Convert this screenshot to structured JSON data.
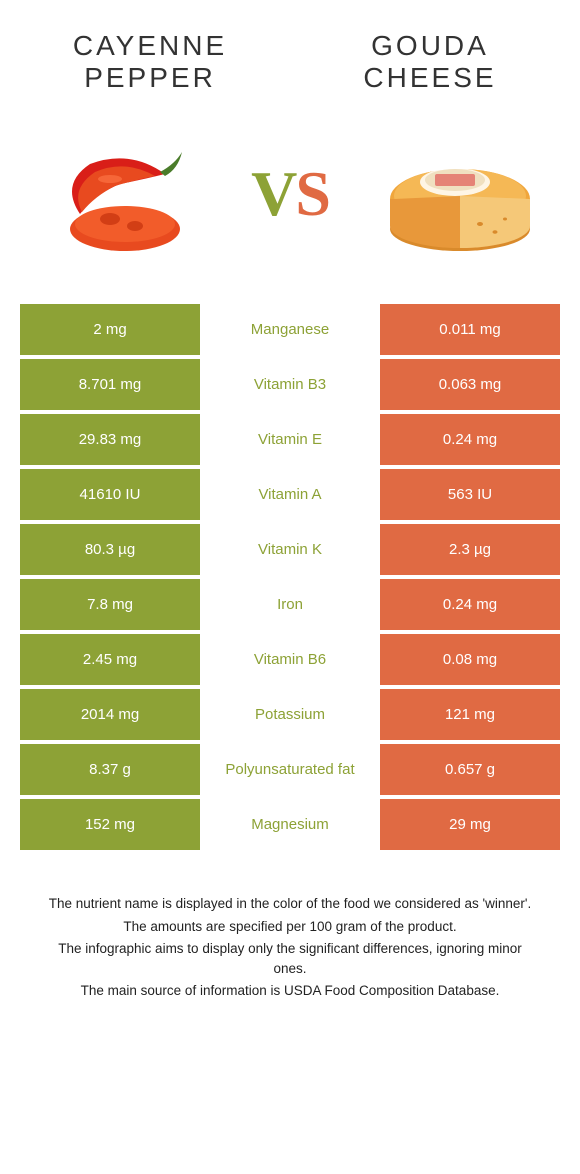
{
  "food_left": {
    "name_line1": "Cayenne",
    "name_line2": "pepper",
    "color": "#8da236"
  },
  "food_right": {
    "name_line1": "Gouda",
    "name_line2": "cheese",
    "color": "#e06a43"
  },
  "vs": {
    "v": "V",
    "s": "S"
  },
  "colors": {
    "green": "#8da236",
    "orange": "#e06a43",
    "white": "#ffffff"
  },
  "nutrients": [
    {
      "label": "Manganese",
      "left": "2 mg",
      "right": "0.011 mg",
      "winner": "left"
    },
    {
      "label": "Vitamin B3",
      "left": "8.701 mg",
      "right": "0.063 mg",
      "winner": "left"
    },
    {
      "label": "Vitamin E",
      "left": "29.83 mg",
      "right": "0.24 mg",
      "winner": "left"
    },
    {
      "label": "Vitamin A",
      "left": "41610 IU",
      "right": "563 IU",
      "winner": "left"
    },
    {
      "label": "Vitamin K",
      "left": "80.3 µg",
      "right": "2.3 µg",
      "winner": "left"
    },
    {
      "label": "Iron",
      "left": "7.8 mg",
      "right": "0.24 mg",
      "winner": "left"
    },
    {
      "label": "Vitamin B6",
      "left": "2.45 mg",
      "right": "0.08 mg",
      "winner": "left"
    },
    {
      "label": "Potassium",
      "left": "2014 mg",
      "right": "121 mg",
      "winner": "left"
    },
    {
      "label": "Polyunsaturated fat",
      "left": "8.37 g",
      "right": "0.657 g",
      "winner": "left"
    },
    {
      "label": "Magnesium",
      "left": "152 mg",
      "right": "29 mg",
      "winner": "left"
    }
  ],
  "footer": {
    "line1": "The nutrient name is displayed in the color of the food we considered as 'winner'.",
    "line2": "The amounts are specified per 100 gram of the product.",
    "line3": "The infographic aims to display only the significant differences, ignoring minor ones.",
    "line4": "The main source of information is USDA Food Composition Database."
  }
}
